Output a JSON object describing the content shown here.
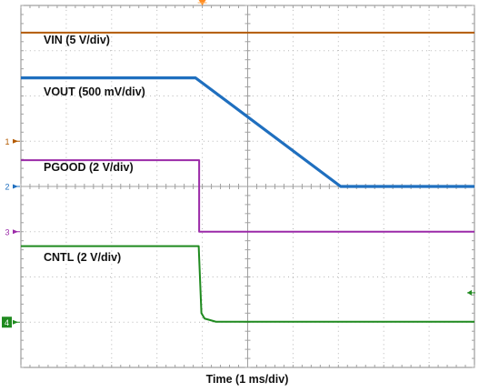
{
  "chart_data": {
    "type": "line",
    "title": "",
    "xlabel": "Time (1 ms/div)",
    "ylabel": "",
    "grid": true,
    "divisions": {
      "horizontal": 10,
      "vertical": 8
    },
    "x_unit": "div",
    "xlim": [
      0,
      10
    ],
    "ylim": [
      -4,
      4
    ],
    "series": [
      {
        "name": "VIN (5 V/div)",
        "channel": "1",
        "color": "#b35a00",
        "x": [
          0,
          10
        ],
        "y": [
          3.4,
          3.4
        ]
      },
      {
        "name": "VOUT (500 mV/div)",
        "channel": "2",
        "color": "#1f6fbf",
        "x": [
          0,
          3.85,
          7.05,
          10
        ],
        "y": [
          2.4,
          2.4,
          0.0,
          0.0
        ]
      },
      {
        "name": "PGOOD (2 V/div)",
        "channel": "3",
        "color": "#9b2aa8",
        "x": [
          0,
          3.93,
          3.93,
          10
        ],
        "y": [
          0.58,
          0.58,
          -1.0,
          -1.0
        ]
      },
      {
        "name": "CNTL (2 V/div)",
        "channel": "4",
        "color": "#1f8a1f",
        "x": [
          0,
          3.92,
          3.98,
          4.05,
          4.3,
          10
        ],
        "y": [
          -1.32,
          -1.32,
          -2.8,
          -2.92,
          -2.99,
          -2.99
        ]
      }
    ],
    "channel_markers": [
      {
        "label": "1",
        "y": 1.0,
        "color": "#b35a00"
      },
      {
        "label": "2",
        "y": 0.0,
        "color": "#1f6fbf"
      },
      {
        "label": "3",
        "y": -1.0,
        "color": "#9b2aa8"
      },
      {
        "label": "4",
        "y": -3.0,
        "color": "#1f8a1f"
      }
    ],
    "trigger_position_x": 4.0,
    "trigger_level_y": -2.35
  }
}
